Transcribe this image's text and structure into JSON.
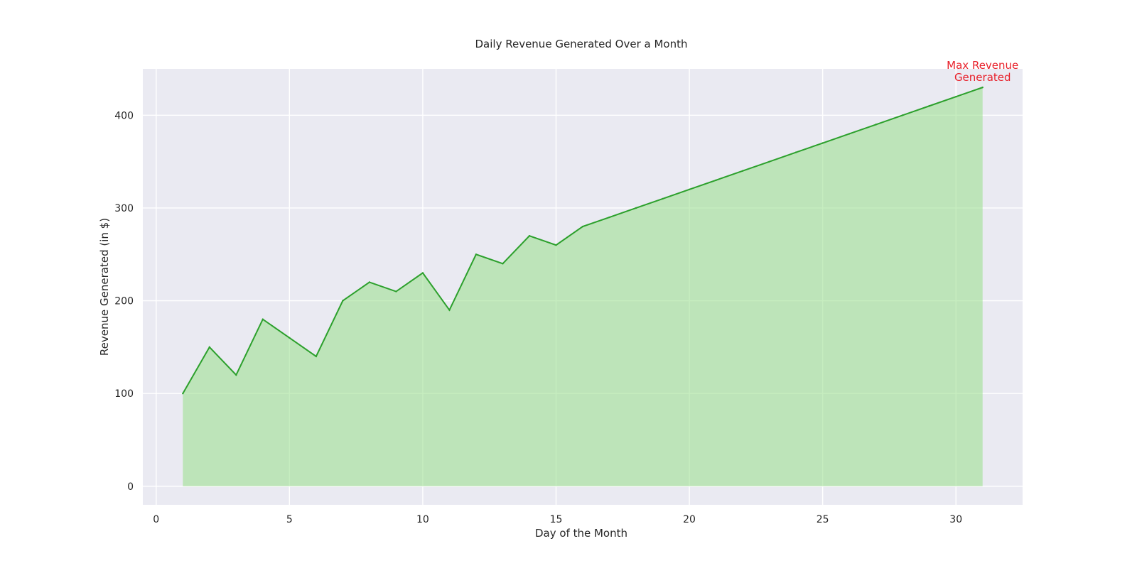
{
  "chart_data": {
    "type": "area",
    "title": "Daily Revenue Generated Over a Month",
    "xlabel": "Day of the Month",
    "ylabel": "Revenue Generated (in $)",
    "xlim": [
      -0.5,
      32.5
    ],
    "ylim": [
      -20,
      450
    ],
    "xticks": [
      0,
      5,
      10,
      15,
      20,
      25,
      30
    ],
    "yticks": [
      0,
      100,
      200,
      300,
      400
    ],
    "grid": true,
    "legend": "none",
    "colors": {
      "line": "#2ca02c",
      "fill": "#98df8a",
      "background": "#eaeaf2",
      "grid": "#ffffff",
      "annotation": "#e8202a"
    },
    "series": [
      {
        "x": [
          1,
          2,
          3,
          4,
          5,
          6,
          7,
          8,
          9,
          10,
          11,
          12,
          13,
          14,
          15,
          16,
          17,
          18,
          19,
          20,
          21,
          22,
          23,
          24,
          25,
          26,
          27,
          28,
          29,
          30,
          31
        ],
        "values": [
          100,
          150,
          120,
          180,
          160,
          140,
          200,
          220,
          210,
          230,
          190,
          250,
          240,
          270,
          260,
          280,
          290,
          300,
          310,
          320,
          330,
          340,
          350,
          360,
          370,
          380,
          390,
          400,
          410,
          420,
          430
        ]
      }
    ],
    "annotation": {
      "x": 31,
      "y": 430,
      "lines": [
        "Max Revenue",
        "Generated"
      ]
    }
  }
}
